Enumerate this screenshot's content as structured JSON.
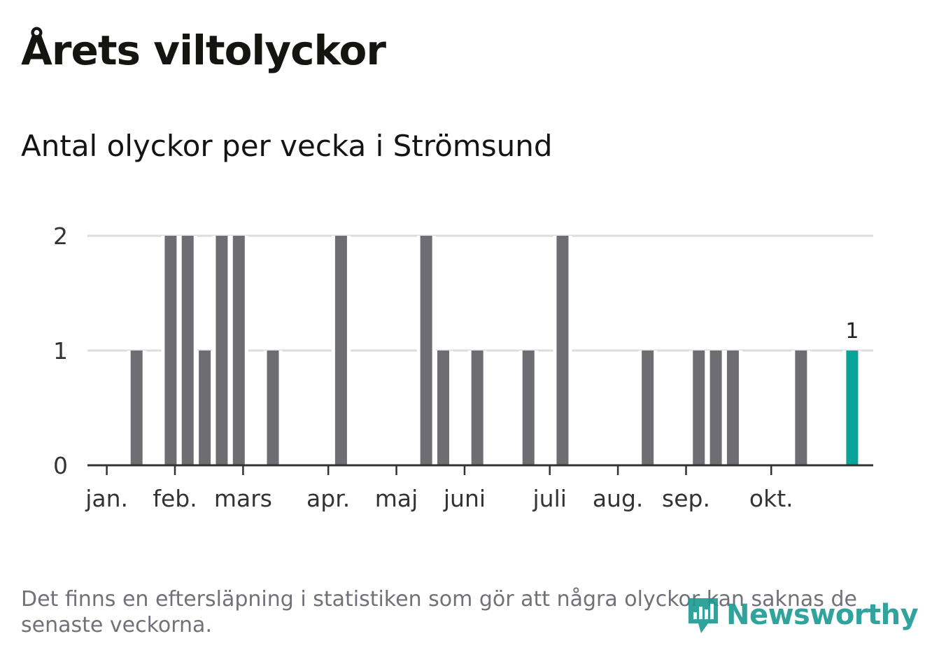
{
  "header": {
    "title": "Årets viltolyckor",
    "subtitle": "Antal olyckor per vecka i Strömsund"
  },
  "footnote": "Det finns en eftersläpning i statistiken som gör att några olyckor kan saknas de senaste veckorna.",
  "brand": {
    "name": "Newsworthy",
    "icon": "newsworthy-logo-icon"
  },
  "colors": {
    "bar": "#6e6d72",
    "highlight": "#0aa39a",
    "grid": "#dddddd",
    "axis": "#333333",
    "brand": "#1a9a92"
  },
  "chart_data": {
    "type": "bar",
    "title": "Antal olyckor per vecka i Strömsund",
    "xlabel": "",
    "ylabel": "",
    "ylim": [
      0,
      2
    ],
    "yticks": [
      0,
      1,
      2
    ],
    "grid": true,
    "x_unit": "week",
    "weeks": [
      1,
      2,
      3,
      4,
      5,
      6,
      7,
      8,
      9,
      10,
      11,
      12,
      13,
      14,
      15,
      16,
      17,
      18,
      19,
      20,
      21,
      22,
      23,
      24,
      25,
      26,
      27,
      28,
      29,
      30,
      31,
      32,
      33,
      34,
      35,
      36,
      37,
      38,
      39,
      40,
      41,
      42,
      43,
      44,
      45
    ],
    "values": [
      0,
      0,
      1,
      0,
      2,
      2,
      1,
      2,
      2,
      0,
      1,
      0,
      0,
      0,
      2,
      0,
      0,
      0,
      0,
      2,
      1,
      0,
      1,
      0,
      0,
      1,
      0,
      2,
      0,
      0,
      0,
      0,
      1,
      0,
      0,
      1,
      1,
      1,
      0,
      0,
      0,
      1,
      0,
      0,
      1
    ],
    "highlight_week": 45,
    "highlight_label": "1",
    "month_ticks": [
      {
        "label": "jan.",
        "week": 1.6
      },
      {
        "label": "feb.",
        "week": 5.6
      },
      {
        "label": "mars",
        "week": 9.6
      },
      {
        "label": "apr.",
        "week": 14.6
      },
      {
        "label": "maj",
        "week": 18.6
      },
      {
        "label": "juni",
        "week": 22.6
      },
      {
        "label": "juli",
        "week": 27.6
      },
      {
        "label": "aug.",
        "week": 31.6
      },
      {
        "label": "sep.",
        "week": 35.6
      },
      {
        "label": "okt.",
        "week": 40.6
      }
    ]
  }
}
